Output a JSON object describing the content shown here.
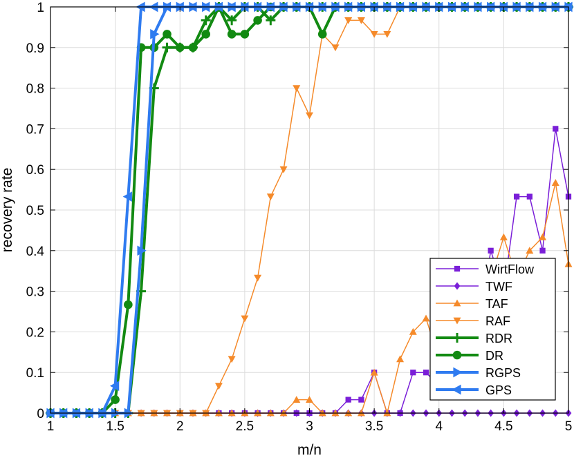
{
  "chart_data": {
    "type": "line",
    "title": "",
    "xlabel": "m/n",
    "ylabel": "recovery rate",
    "xlim": [
      1,
      5
    ],
    "ylim": [
      0,
      1
    ],
    "xticks": [
      "1",
      "1.5",
      "2",
      "2.5",
      "3",
      "3.5",
      "4",
      "4.5",
      "5"
    ],
    "yticks": [
      "0",
      "0.1",
      "0.2",
      "0.3",
      "0.4",
      "0.5",
      "0.6",
      "0.7",
      "0.8",
      "0.9",
      "1"
    ],
    "grid": true,
    "legend_position": "lower-right",
    "x": [
      1.0,
      1.1,
      1.2,
      1.3,
      1.4,
      1.5,
      1.6,
      1.7,
      1.8,
      1.9,
      2.0,
      2.1,
      2.2,
      2.3,
      2.4,
      2.5,
      2.6,
      2.7,
      2.8,
      2.9,
      3.0,
      3.1,
      3.2,
      3.3,
      3.4,
      3.5,
      3.6,
      3.7,
      3.8,
      3.9,
      4.0,
      4.1,
      4.2,
      4.3,
      4.4,
      4.5,
      4.6,
      4.7,
      4.8,
      4.9,
      5.0
    ],
    "series": [
      {
        "name": "WirtFlow",
        "color": "#7a1fd8",
        "marker": "square",
        "width": 1.5,
        "values": [
          0,
          0,
          0,
          0,
          0,
          0,
          0,
          0,
          0,
          0,
          0,
          0,
          0,
          0,
          0,
          0,
          0,
          0,
          0,
          0,
          0,
          0,
          0,
          0.033,
          0.033,
          0.1,
          0,
          0,
          0.1,
          0.1,
          0.067,
          0.2,
          0.133,
          0.2,
          0.4,
          0.3,
          0.533,
          0.533,
          0.4,
          0.7,
          0.533
        ]
      },
      {
        "name": "TWF",
        "color": "#7a1fd8",
        "marker": "diamond",
        "width": 1.5,
        "values": [
          0,
          0,
          0,
          0,
          0,
          0,
          0,
          0,
          0,
          0,
          0,
          0,
          0,
          0,
          0,
          0,
          0,
          0,
          0,
          0,
          0,
          0,
          0,
          0,
          0,
          0,
          0,
          0,
          0,
          0,
          0,
          0,
          0,
          0,
          0,
          0,
          0,
          0,
          0,
          0,
          0
        ]
      },
      {
        "name": "TAF",
        "color": "#f58a2a",
        "marker": "triangle-up",
        "width": 1.5,
        "values": [
          0,
          0,
          0,
          0,
          0,
          0,
          0,
          0,
          0,
          0,
          0,
          0,
          0,
          0,
          0,
          0,
          0,
          0,
          0,
          0.033,
          0.033,
          0,
          0,
          0,
          0,
          0.1,
          0,
          0.133,
          0.2,
          0.233,
          0.133,
          0.233,
          0.233,
          0.367,
          0.333,
          0.433,
          0.333,
          0.4,
          0.433,
          0.567,
          0.367
        ]
      },
      {
        "name": "RAF",
        "color": "#f58a2a",
        "marker": "triangle-down",
        "width": 1.5,
        "values": [
          0,
          0,
          0,
          0,
          0,
          0,
          0,
          0,
          0,
          0,
          0,
          0,
          0,
          0.067,
          0.133,
          0.233,
          0.333,
          0.533,
          0.6,
          0.8,
          0.733,
          0.933,
          0.9,
          0.967,
          0.967,
          0.933,
          0.933,
          1,
          1,
          1,
          1,
          1,
          1,
          1,
          1,
          1,
          1,
          1,
          1,
          1,
          1
        ]
      },
      {
        "name": "RDR",
        "color": "#128a12",
        "marker": "plus",
        "width": 4,
        "values": [
          0,
          0,
          0,
          0,
          0,
          0,
          0,
          0.3,
          0.8,
          0.9,
          0.9,
          0.9,
          0.967,
          1,
          0.967,
          1,
          1,
          0.967,
          1,
          1,
          1,
          1,
          1,
          1,
          1,
          1,
          1,
          1,
          1,
          1,
          1,
          1,
          1,
          1,
          1,
          1,
          1,
          1,
          1,
          1,
          1
        ]
      },
      {
        "name": "DR",
        "color": "#128a12",
        "marker": "circle",
        "width": 4,
        "values": [
          0,
          0,
          0,
          0,
          0,
          0.033,
          0.267,
          0.9,
          0.9,
          0.933,
          0.9,
          0.9,
          0.933,
          1,
          0.933,
          0.933,
          0.967,
          1,
          1,
          1,
          1,
          0.933,
          1,
          1,
          1,
          1,
          1,
          1,
          1,
          1,
          1,
          1,
          1,
          1,
          1,
          1,
          1,
          1,
          1,
          1,
          1
        ]
      },
      {
        "name": "RGPS",
        "color": "#2f7bf0",
        "marker": "triangle-right",
        "width": 4,
        "values": [
          0,
          0,
          0,
          0,
          0,
          0,
          0,
          0.4,
          0.933,
          1,
          1,
          1,
          1,
          1,
          1,
          1,
          1,
          1,
          1,
          1,
          1,
          1,
          1,
          1,
          1,
          1,
          1,
          1,
          1,
          1,
          1,
          1,
          1,
          1,
          1,
          1,
          1,
          1,
          1,
          1,
          1
        ]
      },
      {
        "name": "GPS",
        "color": "#2f7bf0",
        "marker": "triangle-left",
        "width": 4,
        "values": [
          0,
          0,
          0,
          0,
          0,
          0.067,
          0.533,
          1,
          1,
          1,
          1,
          1,
          1,
          1,
          1,
          1,
          1,
          1,
          1,
          1,
          1,
          1,
          1,
          1,
          1,
          1,
          1,
          1,
          1,
          1,
          1,
          1,
          1,
          1,
          1,
          1,
          1,
          1,
          1,
          1,
          1
        ]
      }
    ]
  }
}
